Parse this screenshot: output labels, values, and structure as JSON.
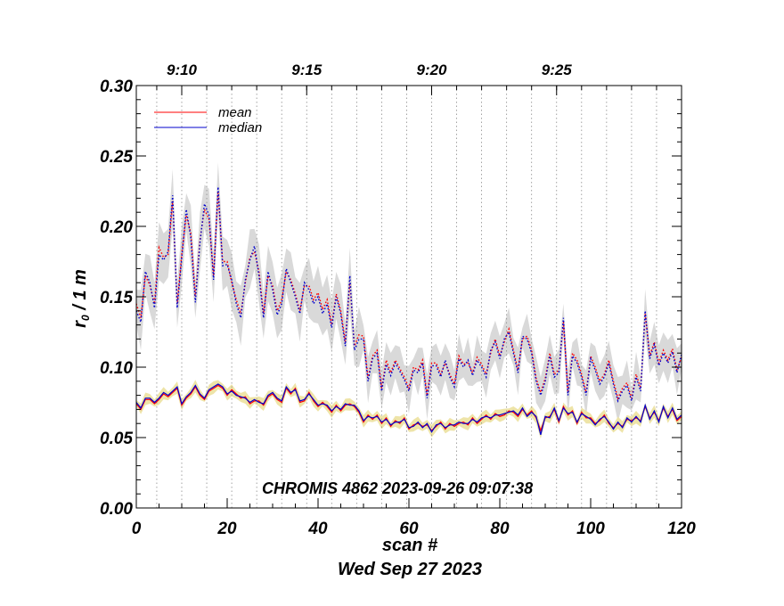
{
  "chart_data": {
    "type": "line",
    "title": "",
    "annotation": "CHROMIS 4862 2023-09-26 09:07:38",
    "xlabel": "scan #",
    "xlabel2": "Wed Sep 27 2023",
    "ylabel": "r₀ / 1 m",
    "ylabel_main": "r",
    "ylabel_sub": "0",
    "ylabel_rest": " / 1 m",
    "xlim": [
      0,
      120
    ],
    "ylim": [
      0,
      0.3
    ],
    "x_ticks": [
      "0",
      "20",
      "40",
      "60",
      "80",
      "100",
      "120"
    ],
    "y_ticks": [
      "0.00",
      "0.05",
      "0.10",
      "0.15",
      "0.20",
      "0.25",
      "0.30"
    ],
    "time_axis_ticks": [
      {
        "label": "9:10",
        "x": 10
      },
      {
        "label": "9:15",
        "x": 37.5
      },
      {
        "label": "9:20",
        "x": 65
      },
      {
        "label": "9:25",
        "x": 92.5
      }
    ],
    "grid": "vertical dotted lines, one per minute",
    "legend_position": "top-left",
    "colors": {
      "mean": "#ff0000",
      "median": "#0000cc",
      "upper_band": "#d9d9d9",
      "lower_band": "#eee4a8"
    },
    "series": [
      {
        "name": "mean",
        "style": "solid",
        "x": [
          0,
          1,
          2,
          3,
          4,
          5,
          6,
          7,
          8,
          9,
          10,
          11,
          12,
          13,
          14,
          15,
          16,
          17,
          18,
          19,
          20,
          21,
          22,
          23,
          24,
          25,
          26,
          27,
          28,
          29,
          30,
          31,
          32,
          33,
          34,
          35,
          36,
          37,
          38,
          39,
          40,
          41,
          42,
          43,
          44,
          45,
          46,
          47,
          48,
          49,
          50,
          51,
          52,
          53,
          54,
          55,
          56,
          57,
          58,
          59,
          60,
          61,
          62,
          63,
          64,
          65,
          66,
          67,
          68,
          69,
          70,
          71,
          72,
          73,
          74,
          75,
          76,
          77,
          78,
          79,
          80,
          81,
          82,
          83,
          84,
          85,
          86,
          87,
          88,
          89,
          90,
          91,
          92,
          93,
          94,
          95,
          96,
          97,
          98,
          99,
          100,
          101,
          102,
          103,
          104,
          105,
          106,
          107,
          108,
          109,
          110,
          111,
          112,
          113,
          114,
          115,
          116,
          117,
          118,
          119,
          120
        ],
        "values": [
          0.074,
          0.07,
          0.077,
          0.077,
          0.074,
          0.077,
          0.081,
          0.079,
          0.082,
          0.085,
          0.073,
          0.078,
          0.081,
          0.086,
          0.08,
          0.077,
          0.083,
          0.085,
          0.087,
          0.085,
          0.08,
          0.084,
          0.081,
          0.078,
          0.079,
          0.074,
          0.076,
          0.076,
          0.073,
          0.079,
          0.081,
          0.077,
          0.075,
          0.085,
          0.081,
          0.085,
          0.075,
          0.076,
          0.082,
          0.076,
          0.072,
          0.075,
          0.072,
          0.068,
          0.073,
          0.069,
          0.073,
          0.074,
          0.072,
          0.068,
          0.061,
          0.066,
          0.063,
          0.066,
          0.06,
          0.064,
          0.058,
          0.062,
          0.06,
          0.064,
          0.056,
          0.059,
          0.06,
          0.058,
          0.059,
          0.055,
          0.058,
          0.061,
          0.056,
          0.06,
          0.058,
          0.06,
          0.061,
          0.059,
          0.064,
          0.06,
          0.063,
          0.066,
          0.063,
          0.067,
          0.065,
          0.066,
          0.069,
          0.068,
          0.065,
          0.07,
          0.066,
          0.069,
          0.064,
          0.055,
          0.064,
          0.065,
          0.07,
          0.061,
          0.072,
          0.066,
          0.069,
          0.06,
          0.068,
          0.064,
          0.064,
          0.06,
          0.062,
          0.066,
          0.06,
          0.057,
          0.06,
          0.058,
          0.063,
          0.062,
          0.064,
          0.062,
          0.072,
          0.064,
          0.068,
          0.062,
          0.071,
          0.065,
          0.07,
          0.062,
          0.065
        ]
      },
      {
        "name": "median",
        "style": "solid",
        "x": [
          0,
          1,
          2,
          3,
          4,
          5,
          6,
          7,
          8,
          9,
          10,
          11,
          12,
          13,
          14,
          15,
          16,
          17,
          18,
          19,
          20,
          21,
          22,
          23,
          24,
          25,
          26,
          27,
          28,
          29,
          30,
          31,
          32,
          33,
          34,
          35,
          36,
          37,
          38,
          39,
          40,
          41,
          42,
          43,
          44,
          45,
          46,
          47,
          48,
          49,
          50,
          51,
          52,
          53,
          54,
          55,
          56,
          57,
          58,
          59,
          60,
          61,
          62,
          63,
          64,
          65,
          66,
          67,
          68,
          69,
          70,
          71,
          72,
          73,
          74,
          75,
          76,
          77,
          78,
          79,
          80,
          81,
          82,
          83,
          84,
          85,
          86,
          87,
          88,
          89,
          90,
          91,
          92,
          93,
          94,
          95,
          96,
          97,
          98,
          99,
          100,
          101,
          102,
          103,
          104,
          105,
          106,
          107,
          108,
          109,
          110,
          111,
          112,
          113,
          114,
          115,
          116,
          117,
          118,
          119,
          120
        ],
        "values": [
          0.075,
          0.071,
          0.078,
          0.078,
          0.075,
          0.078,
          0.082,
          0.08,
          0.083,
          0.086,
          0.074,
          0.079,
          0.082,
          0.087,
          0.081,
          0.078,
          0.084,
          0.086,
          0.088,
          0.086,
          0.081,
          0.083,
          0.08,
          0.079,
          0.078,
          0.075,
          0.077,
          0.075,
          0.074,
          0.08,
          0.082,
          0.078,
          0.076,
          0.086,
          0.082,
          0.084,
          0.076,
          0.077,
          0.081,
          0.077,
          0.073,
          0.074,
          0.073,
          0.069,
          0.072,
          0.07,
          0.074,
          0.073,
          0.073,
          0.069,
          0.062,
          0.065,
          0.064,
          0.065,
          0.061,
          0.063,
          0.059,
          0.061,
          0.061,
          0.063,
          0.057,
          0.058,
          0.061,
          0.057,
          0.06,
          0.054,
          0.059,
          0.06,
          0.057,
          0.059,
          0.059,
          0.061,
          0.06,
          0.06,
          0.063,
          0.061,
          0.064,
          0.065,
          0.064,
          0.066,
          0.066,
          0.067,
          0.068,
          0.069,
          0.066,
          0.071,
          0.065,
          0.068,
          0.065,
          0.052,
          0.065,
          0.064,
          0.071,
          0.062,
          0.071,
          0.067,
          0.068,
          0.061,
          0.067,
          0.065,
          0.063,
          0.059,
          0.063,
          0.065,
          0.061,
          0.056,
          0.061,
          0.057,
          0.064,
          0.061,
          0.065,
          0.061,
          0.073,
          0.063,
          0.069,
          0.061,
          0.072,
          0.064,
          0.071,
          0.063,
          0.066
        ]
      },
      {
        "name": "",
        "style": "dotted",
        "color": "#ff0000",
        "x": [
          0,
          1,
          2,
          3,
          4,
          5,
          6,
          7,
          8,
          9,
          10,
          11,
          12,
          13,
          14,
          15,
          16,
          17,
          18,
          19,
          20,
          21,
          22,
          23,
          24,
          25,
          26,
          27,
          28,
          29,
          30,
          31,
          32,
          33,
          34,
          35,
          36,
          37,
          38,
          39,
          40,
          41,
          42,
          43,
          44,
          45,
          46,
          47,
          48,
          49,
          50,
          51,
          52,
          53,
          54,
          55,
          56,
          57,
          58,
          59,
          60,
          61,
          62,
          63,
          64,
          65,
          66,
          67,
          68,
          69,
          70,
          71,
          72,
          73,
          74,
          75,
          76,
          77,
          78,
          79,
          80,
          81,
          82,
          83,
          84,
          85,
          86,
          87,
          88,
          89,
          90,
          91,
          92,
          93,
          94,
          95,
          96,
          97,
          98,
          99,
          100,
          101,
          102,
          103,
          104,
          105,
          106,
          107,
          108,
          109,
          110,
          111,
          112,
          113,
          114,
          115,
          116,
          117,
          118,
          119,
          120
        ],
        "values": [
          0.145,
          0.135,
          0.165,
          0.158,
          0.145,
          0.185,
          0.178,
          0.18,
          0.218,
          0.145,
          0.18,
          0.208,
          0.195,
          0.15,
          0.19,
          0.212,
          0.205,
          0.165,
          0.225,
          0.175,
          0.175,
          0.16,
          0.148,
          0.138,
          0.16,
          0.178,
          0.182,
          0.168,
          0.138,
          0.165,
          0.158,
          0.14,
          0.148,
          0.168,
          0.162,
          0.152,
          0.14,
          0.158,
          0.158,
          0.148,
          0.153,
          0.141,
          0.148,
          0.13,
          0.152,
          0.14,
          0.118,
          0.16,
          0.115,
          0.123,
          0.122,
          0.092,
          0.108,
          0.112,
          0.085,
          0.105,
          0.096,
          0.105,
          0.099,
          0.093,
          0.085,
          0.1,
          0.098,
          0.105,
          0.08,
          0.103,
          0.103,
          0.095,
          0.103,
          0.095,
          0.088,
          0.108,
          0.102,
          0.103,
          0.096,
          0.107,
          0.102,
          0.095,
          0.11,
          0.12,
          0.108,
          0.118,
          0.127,
          0.112,
          0.098,
          0.12,
          0.122,
          0.112,
          0.092,
          0.082,
          0.092,
          0.11,
          0.095,
          0.098,
          0.132,
          0.082,
          0.11,
          0.105,
          0.095,
          0.082,
          0.108,
          0.1,
          0.09,
          0.095,
          0.105,
          0.09,
          0.078,
          0.085,
          0.089,
          0.078,
          0.095,
          0.085,
          0.138,
          0.108,
          0.118,
          0.103,
          0.112,
          0.105,
          0.113,
          0.098,
          0.107
        ]
      },
      {
        "name": "",
        "style": "dotted",
        "color": "#0000cc",
        "x": [
          0,
          1,
          2,
          3,
          4,
          5,
          6,
          7,
          8,
          9,
          10,
          11,
          12,
          13,
          14,
          15,
          16,
          17,
          18,
          19,
          20,
          21,
          22,
          23,
          24,
          25,
          26,
          27,
          28,
          29,
          30,
          31,
          32,
          33,
          34,
          35,
          36,
          37,
          38,
          39,
          40,
          41,
          42,
          43,
          44,
          45,
          46,
          47,
          48,
          49,
          50,
          51,
          52,
          53,
          54,
          55,
          56,
          57,
          58,
          59,
          60,
          61,
          62,
          63,
          64,
          65,
          66,
          67,
          68,
          69,
          70,
          71,
          72,
          73,
          74,
          75,
          76,
          77,
          78,
          79,
          80,
          81,
          82,
          83,
          84,
          85,
          86,
          87,
          88,
          89,
          90,
          91,
          92,
          93,
          94,
          95,
          96,
          97,
          98,
          99,
          100,
          101,
          102,
          103,
          104,
          105,
          106,
          107,
          108,
          109,
          110,
          111,
          112,
          113,
          114,
          115,
          116,
          117,
          118,
          119,
          120
        ],
        "values": [
          0.14,
          0.132,
          0.168,
          0.16,
          0.142,
          0.18,
          0.176,
          0.182,
          0.222,
          0.142,
          0.178,
          0.212,
          0.192,
          0.146,
          0.188,
          0.216,
          0.208,
          0.162,
          0.228,
          0.172,
          0.173,
          0.162,
          0.145,
          0.135,
          0.162,
          0.176,
          0.186,
          0.165,
          0.135,
          0.168,
          0.155,
          0.137,
          0.145,
          0.17,
          0.16,
          0.15,
          0.138,
          0.16,
          0.155,
          0.145,
          0.15,
          0.138,
          0.145,
          0.128,
          0.15,
          0.138,
          0.115,
          0.165,
          0.112,
          0.12,
          0.12,
          0.09,
          0.106,
          0.11,
          0.083,
          0.102,
          0.094,
          0.103,
          0.097,
          0.091,
          0.083,
          0.098,
          0.096,
          0.103,
          0.078,
          0.101,
          0.101,
          0.093,
          0.105,
          0.093,
          0.086,
          0.106,
          0.1,
          0.105,
          0.094,
          0.105,
          0.1,
          0.093,
          0.112,
          0.118,
          0.106,
          0.12,
          0.125,
          0.11,
          0.096,
          0.122,
          0.12,
          0.11,
          0.09,
          0.08,
          0.09,
          0.108,
          0.093,
          0.096,
          0.135,
          0.08,
          0.108,
          0.103,
          0.093,
          0.08,
          0.106,
          0.098,
          0.088,
          0.093,
          0.103,
          0.088,
          0.076,
          0.083,
          0.087,
          0.076,
          0.093,
          0.083,
          0.14,
          0.106,
          0.116,
          0.101,
          0.11,
          0.103,
          0.111,
          0.096,
          0.109
        ]
      }
    ]
  }
}
